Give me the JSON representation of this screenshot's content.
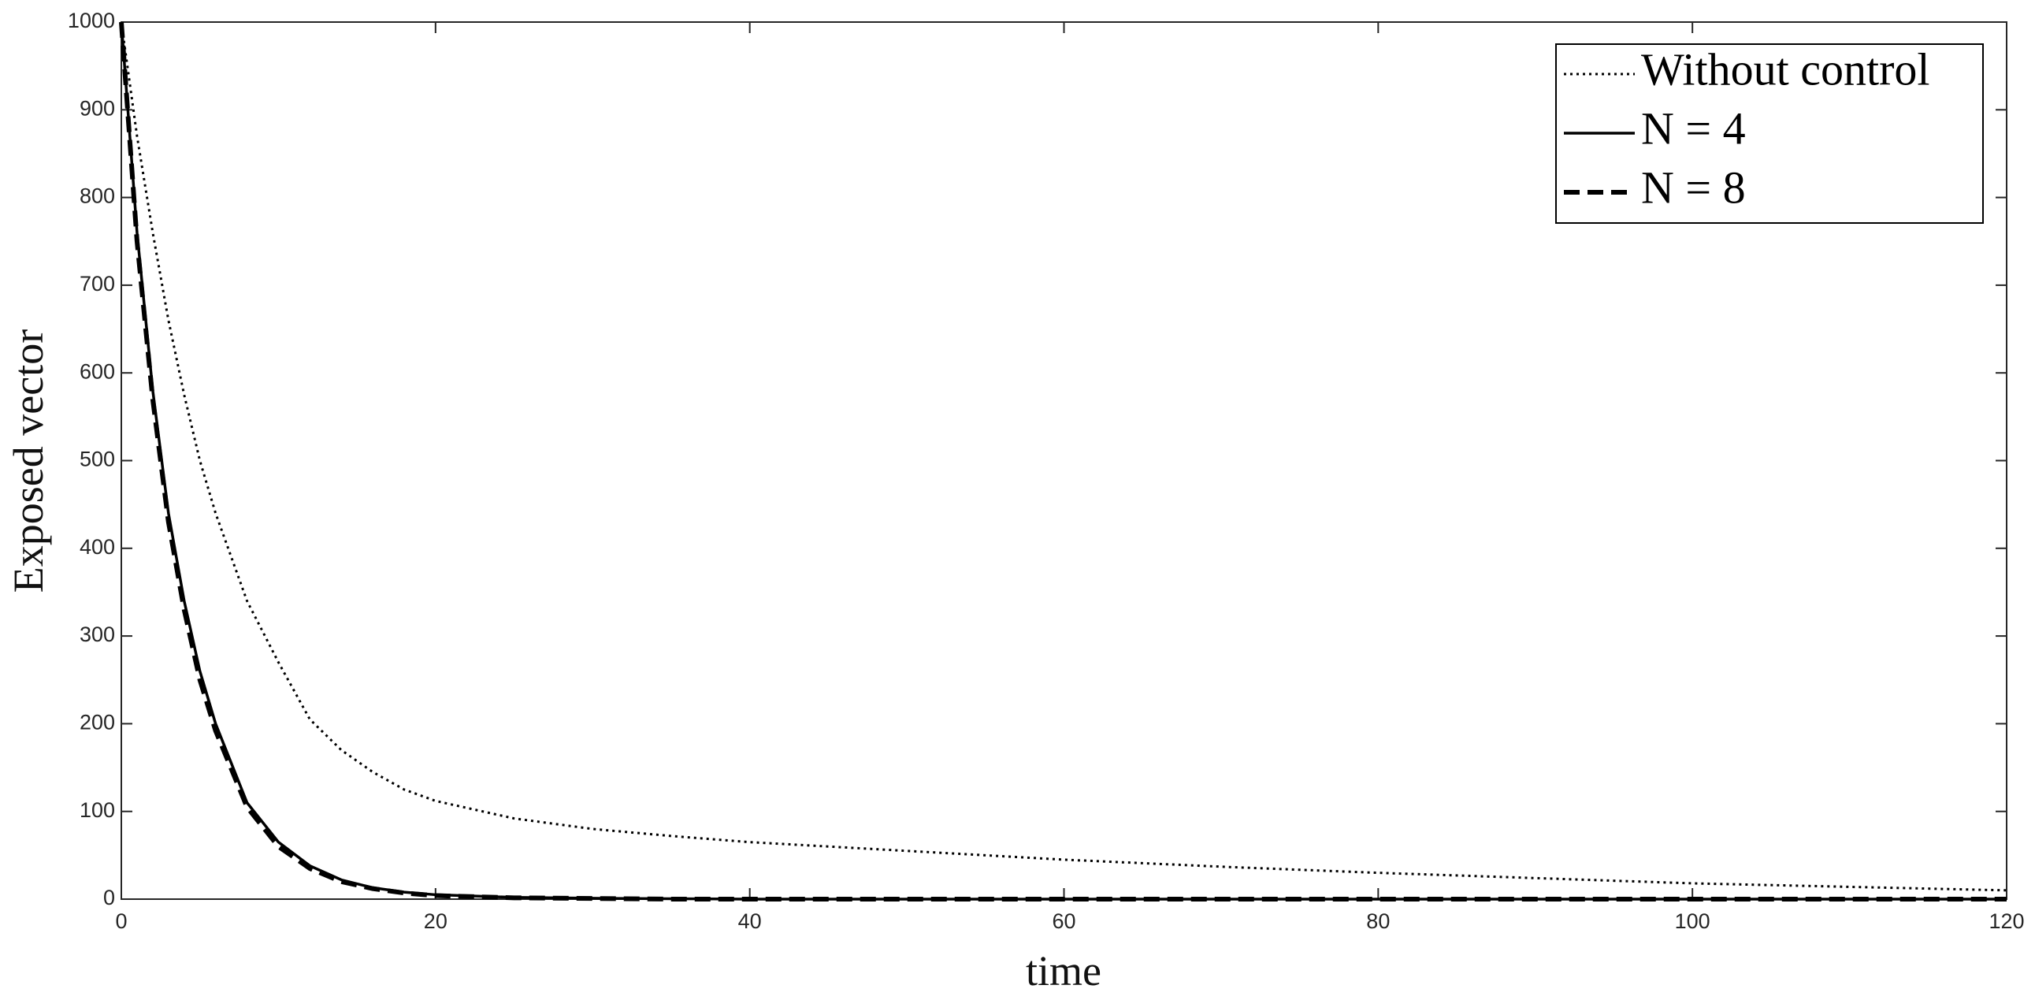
{
  "chart_data": {
    "type": "line",
    "xlabel": "time",
    "ylabel": "Exposed vector",
    "x": [
      0,
      1,
      2,
      3,
      4,
      5,
      6,
      8,
      10,
      12,
      14,
      16,
      18,
      20,
      25,
      30,
      35,
      40,
      50,
      60,
      70,
      80,
      90,
      100,
      110,
      120
    ],
    "series": [
      {
        "name": "Without control",
        "color": "#000000",
        "linestyle": "dotted",
        "values": [
          1000,
          870,
          760,
          660,
          575,
          500,
          440,
          340,
          270,
          205,
          170,
          145,
          125,
          112,
          92,
          80,
          72,
          65,
          55,
          45,
          37,
          30,
          24,
          18,
          14,
          10
        ]
      },
      {
        "name": "N = 4",
        "color": "#000000",
        "linestyle": "solid",
        "values": [
          1000,
          760,
          580,
          440,
          340,
          260,
          200,
          110,
          65,
          38,
          22,
          13,
          8,
          5,
          2,
          1,
          0.5,
          0,
          0,
          0,
          0,
          0,
          0,
          0,
          0,
          0
        ]
      },
      {
        "name": "N = 8",
        "color": "#000000",
        "linestyle": "dashed",
        "values": [
          1000,
          750,
          570,
          430,
          330,
          250,
          192,
          105,
          60,
          35,
          20,
          12,
          7,
          4,
          1.5,
          0.8,
          0,
          0,
          0,
          0,
          0,
          0,
          0,
          0,
          0,
          0
        ]
      }
    ],
    "xlim": [
      0,
      120
    ],
    "xticks": [
      0,
      20,
      40,
      60,
      80,
      100,
      120
    ],
    "ylim": [
      0,
      1000
    ],
    "yticks": [
      0,
      100,
      200,
      300,
      400,
      500,
      600,
      700,
      800,
      900,
      1000
    ],
    "legend": "upper right",
    "grid": false
  }
}
